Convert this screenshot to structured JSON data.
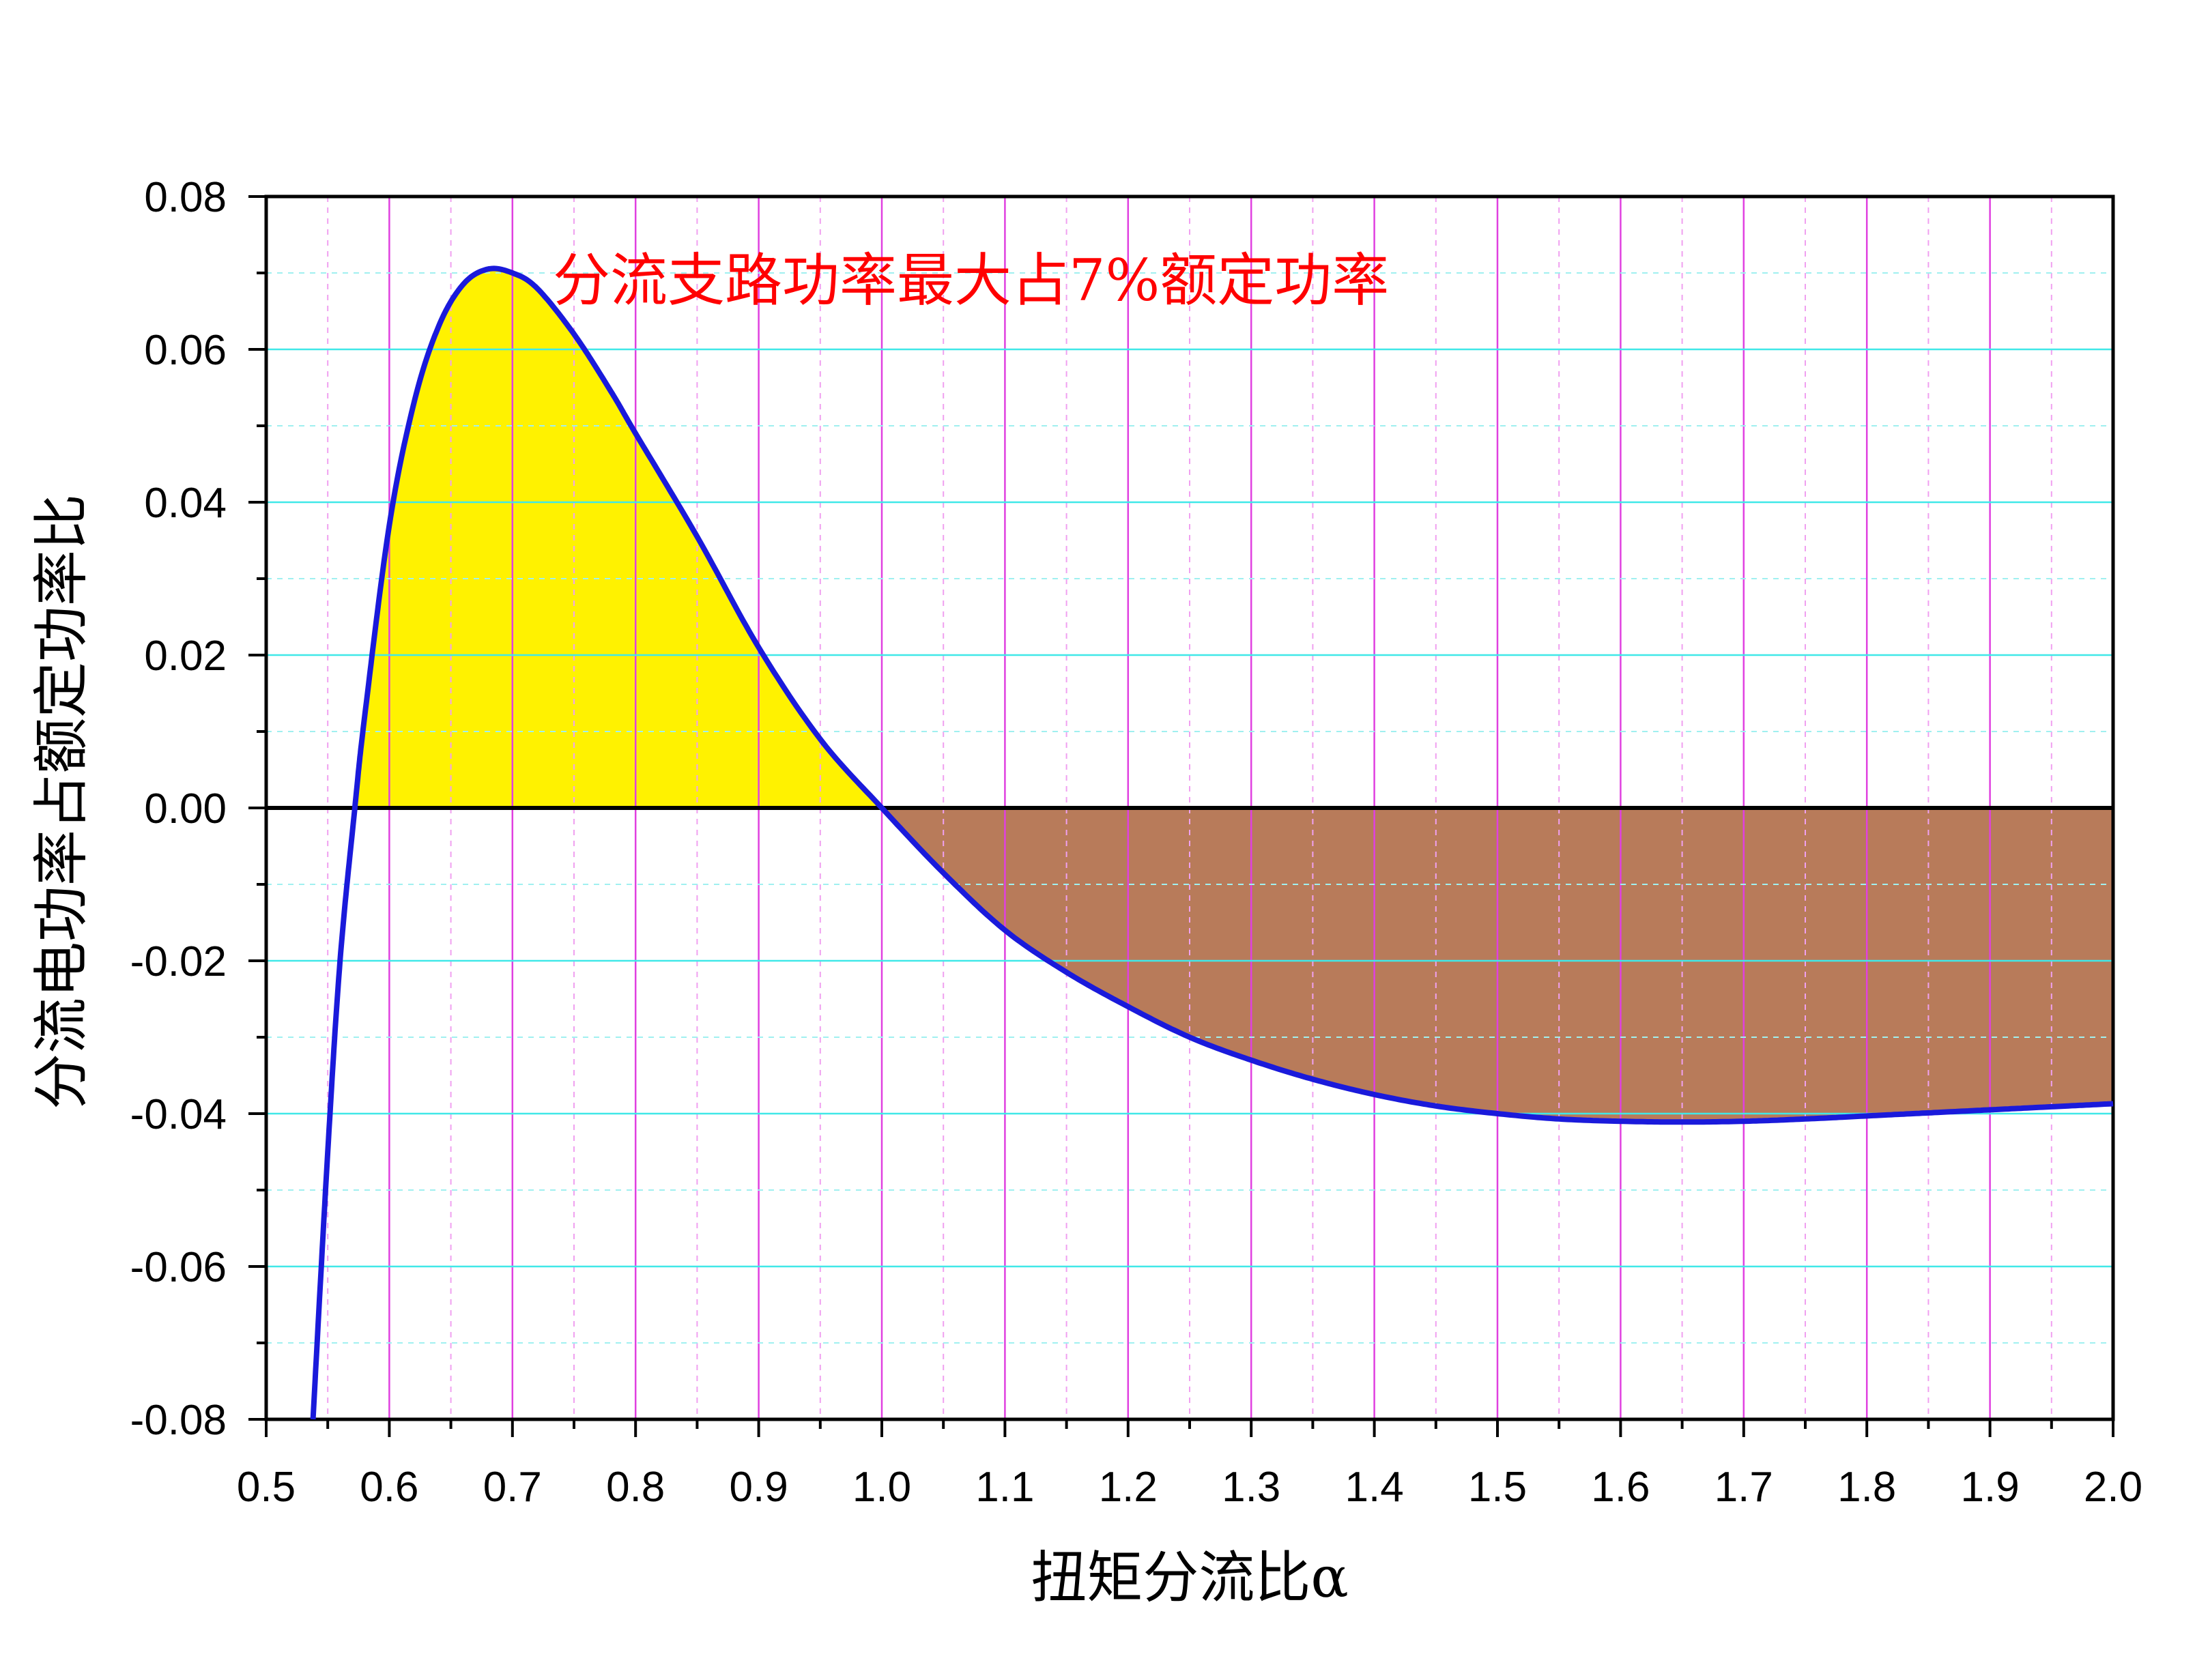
{
  "chart_data": {
    "type": "line",
    "title": "",
    "xlabel": "扭矩分流比α",
    "ylabel": "分流电功率占额定功率比",
    "xlim": [
      0.5,
      2.0
    ],
    "ylim": [
      -0.08,
      0.08
    ],
    "grid": true,
    "x_ticks": [
      "0.5",
      "0.6",
      "0.7",
      "0.8",
      "0.9",
      "1.0",
      "1.1",
      "1.2",
      "1.3",
      "1.4",
      "1.5",
      "1.6",
      "1.7",
      "1.8",
      "1.9",
      "2.0"
    ],
    "y_ticks": [
      "0.08",
      "0.06",
      "0.04",
      "0.02",
      "0.00",
      "-0.02",
      "-0.04",
      "-0.06",
      "-0.08"
    ],
    "annotation": "分流支路功率最大占7%额定功率",
    "colors": {
      "curve": "#1a1adb",
      "positive_fill": "#fff200",
      "negative_fill": "#b87b5a",
      "major_x_grid": "#e040e0",
      "minor_x_grid": "#f0a0f0",
      "major_y_grid": "#40e8e8",
      "minor_y_grid": "#a0f0f0",
      "annotation": "#ff0000"
    },
    "series": [
      {
        "x": [
          0.538,
          0.55,
          0.56,
          0.572,
          0.58,
          0.6,
          0.62,
          0.64,
          0.66,
          0.68,
          0.7,
          0.72,
          0.75,
          0.78,
          0.8,
          0.85,
          0.9,
          0.95,
          1.0,
          1.05,
          1.1,
          1.15,
          1.2,
          1.25,
          1.3,
          1.35,
          1.4,
          1.45,
          1.5,
          1.55,
          1.6,
          1.65,
          1.7,
          1.75,
          1.8,
          1.85,
          1.9,
          1.95,
          2.0
        ],
        "y": [
          -0.08,
          -0.045,
          -0.02,
          0.0,
          0.012,
          0.037,
          0.053,
          0.063,
          0.0685,
          0.0705,
          0.07,
          0.068,
          0.062,
          0.0545,
          0.049,
          0.0355,
          0.021,
          0.009,
          0.0,
          -0.0085,
          -0.016,
          -0.0215,
          -0.026,
          -0.03,
          -0.033,
          -0.0355,
          -0.0375,
          -0.039,
          -0.04,
          -0.0407,
          -0.041,
          -0.0411,
          -0.041,
          -0.0407,
          -0.0403,
          -0.0399,
          -0.0395,
          -0.0391,
          -0.0387
        ]
      }
    ]
  }
}
